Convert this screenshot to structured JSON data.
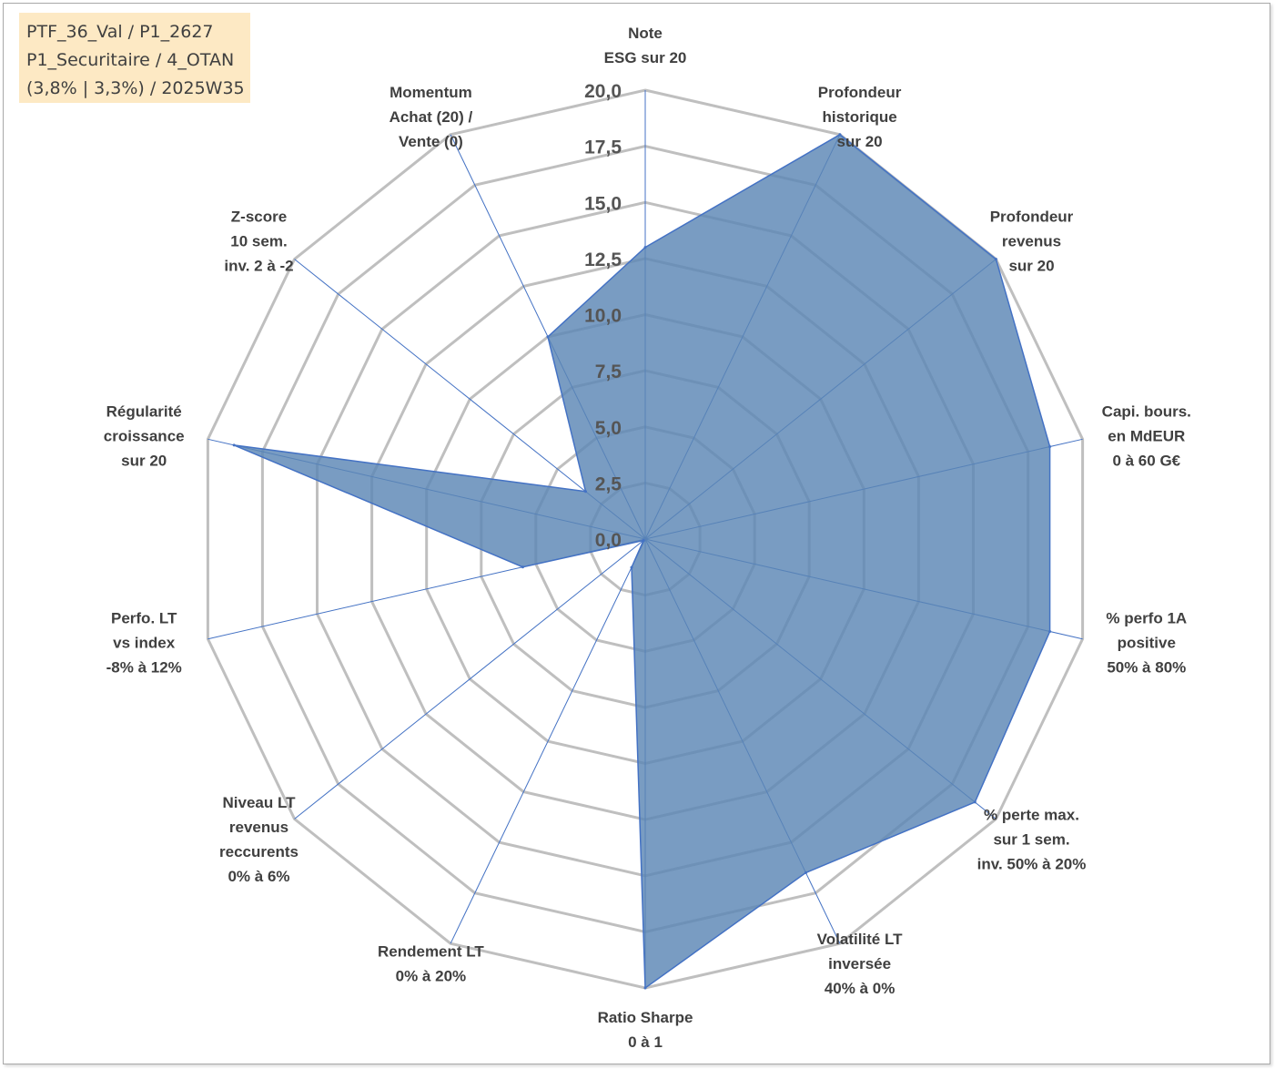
{
  "info_box": {
    "line1": "PTF_36_Val / P1_2627",
    "line2": "P1_Securitaire / 4_OTAN",
    "line3": "(3,8% | 3,3%) / 2025W35"
  },
  "colors": {
    "fill": "#5b86b5",
    "stroke": "#4472c4",
    "grid": "#bfbfbf",
    "spoke": "#4472c4",
    "text": "#404040",
    "info_bg": "#fde9c4"
  },
  "chart_data": {
    "type": "radar",
    "r_range": [
      0,
      20
    ],
    "r_ticks": [
      "0,0",
      "2,5",
      "5,0",
      "7,5",
      "10,0",
      "12,5",
      "15,0",
      "17,5",
      "20,0"
    ],
    "categories": [
      [
        "Note",
        "ESG sur 20"
      ],
      [
        "Profondeur",
        "historique",
        "sur 20"
      ],
      [
        "Profondeur",
        "revenus",
        "sur 20"
      ],
      [
        "Capi. bours.",
        "en MdEUR",
        "0 à 60 G€"
      ],
      [
        "% perfo 1A",
        "positive",
        "50% à 80%"
      ],
      [
        "% perte max.",
        "sur 1 sem.",
        "inv. 50% à 20%"
      ],
      [
        "Volatilité LT",
        "inversée",
        "40% à 0%"
      ],
      [
        "Ratio Sharpe",
        "0 à 1"
      ],
      [
        "Rendement LT",
        "0% à 20%"
      ],
      [
        "Niveau LT",
        "revenus",
        "reccurents",
        "0% à 6%"
      ],
      [
        "Perfo. LT",
        "vs index",
        "-8% à 12%"
      ],
      [
        "Régularité",
        "croissance",
        "sur 20"
      ],
      [
        "Z-score",
        "10 sem.",
        "inv. 2 à -2"
      ],
      [
        "Momentum",
        "Achat (20) /",
        "Vente (0)"
      ]
    ],
    "series": [
      {
        "values": [
          13.0,
          20.0,
          20.0,
          18.5,
          18.5,
          18.8,
          16.5,
          20.0,
          1.4,
          0.1,
          5.6,
          18.8,
          3.4,
          10.0
        ]
      }
    ],
    "grid": true,
    "legend": "none"
  }
}
